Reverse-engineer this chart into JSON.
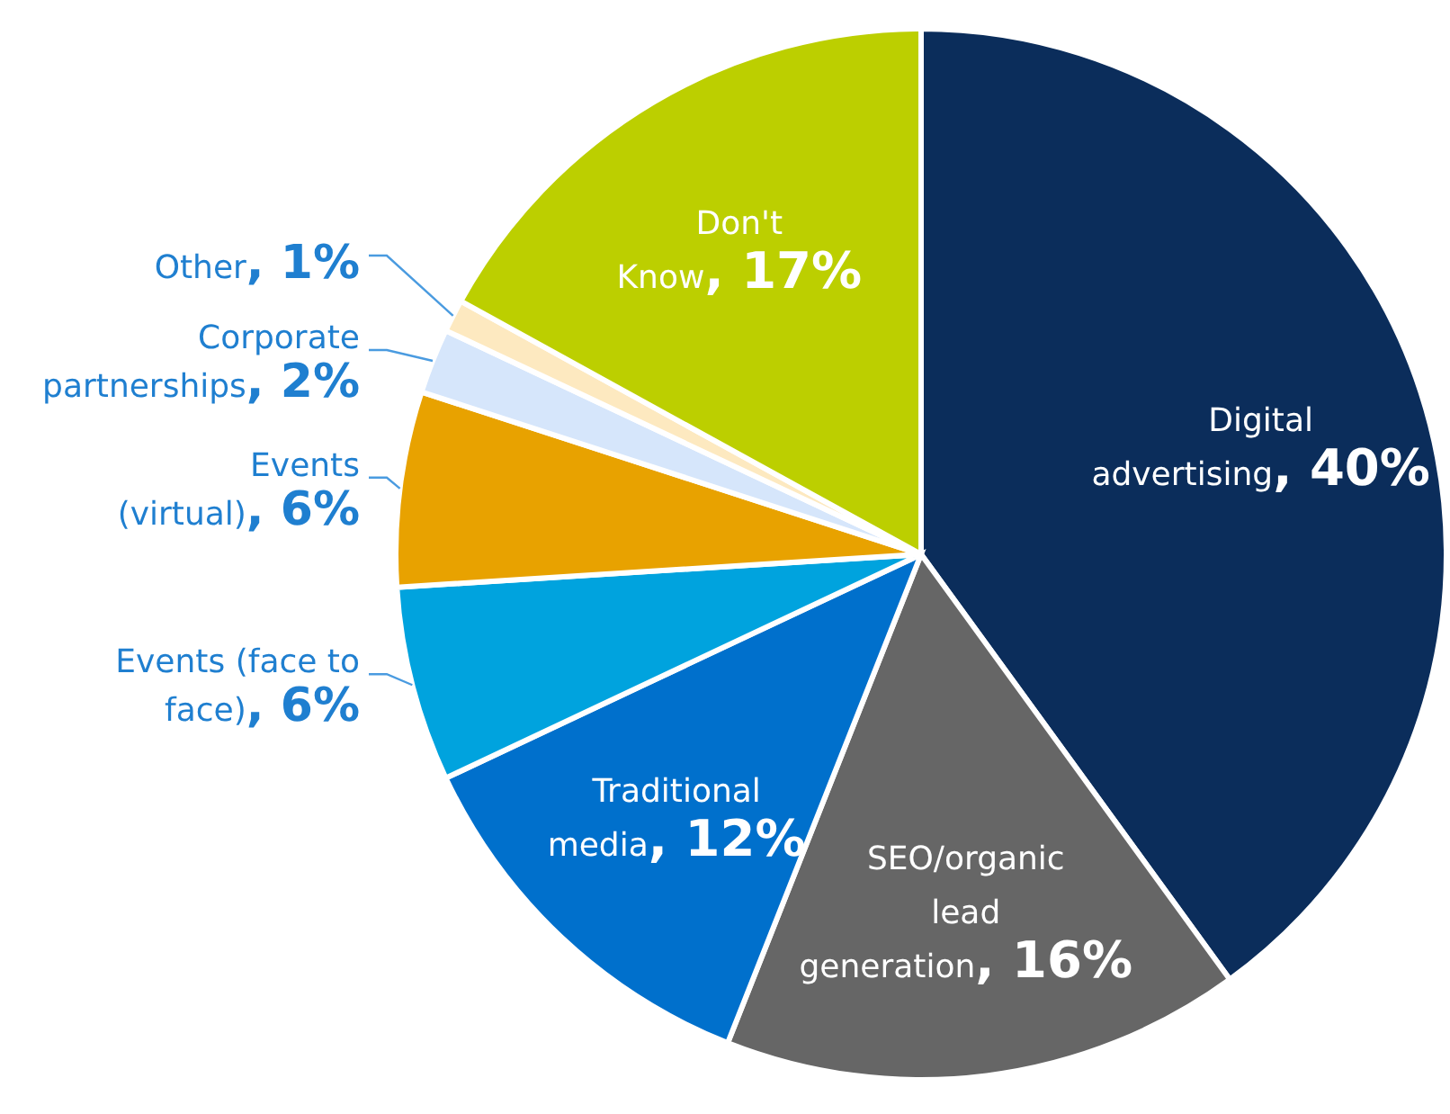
{
  "chart_data": {
    "type": "pie",
    "categories": [
      "Digital advertising",
      "SEO/organic lead generation",
      "Traditional media",
      "Events (face to face)",
      "Events (virtual)",
      "Corporate partnerships",
      "Other",
      "Don't Know"
    ],
    "values": [
      40,
      16,
      12,
      6,
      6,
      2,
      1,
      17
    ],
    "colors": [
      "#0b2d5b",
      "#666666",
      "#0070cc",
      "#00a3de",
      "#e8a200",
      "#d6e6fb",
      "#fde9c0",
      "#bccf00"
    ],
    "value_labels": [
      ", 40%",
      ", 16%",
      ", 12%",
      ", 6%",
      ", 6%",
      ", 2%",
      ", 1%",
      ", 17%"
    ]
  }
}
